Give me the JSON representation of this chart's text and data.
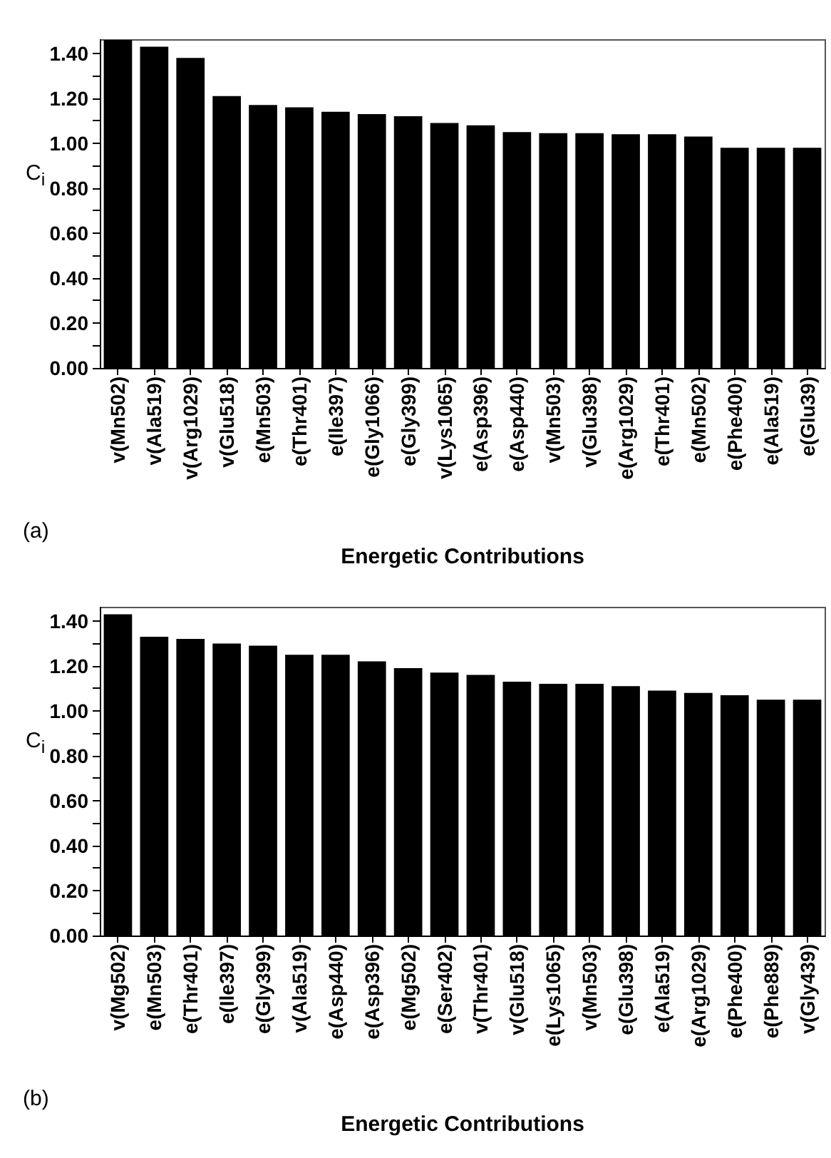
{
  "chart_data": [
    {
      "type": "bar",
      "xlabel": "Energetic Contributions",
      "ylabel": "C$_{i}$",
      "annotations": [
        "(a)"
      ],
      "categories": [
        "v(Mn502)",
        "v(Ala519)",
        "v(Arg1029)",
        "v(Glu518)",
        "e(Mn503)",
        "e(Thr401)",
        "e(Ile397)",
        "e(Gly1066)",
        "e(Gly399)",
        "v(Lys1065)",
        "e(Asp396)",
        "e(Asp440)",
        "v(Mn503)",
        "v(Glu398)",
        "e(Arg1029)",
        "e(Thr401)",
        "e(Mn502)",
        "e(Phe400)",
        "e(Ala519)",
        "e(Glu39)"
      ],
      "values": [
        1.46,
        1.43,
        1.38,
        1.21,
        1.17,
        1.16,
        1.14,
        1.13,
        1.12,
        1.09,
        1.08,
        1.05,
        1.045,
        1.045,
        1.04,
        1.04,
        1.03,
        0.98,
        0.98,
        0.98
      ],
      "color": "#000000",
      "ylim": [
        0,
        1.46
      ],
      "yticks": [
        {
          "value": 0,
          "label": "0.00"
        },
        {
          "value": 0.1,
          "label": null
        },
        {
          "value": 0.2,
          "label": "0.20"
        },
        {
          "value": 0.3,
          "label": null
        },
        {
          "value": 0.4,
          "label": "0.40"
        },
        {
          "value": 0.5,
          "label": null
        },
        {
          "value": 0.6,
          "label": "0.60"
        },
        {
          "value": 0.7,
          "label": null
        },
        {
          "value": 0.8,
          "label": "0.80"
        },
        {
          "value": 0.9,
          "label": null
        },
        {
          "value": 1,
          "label": "1.00"
        },
        {
          "value": 1.1,
          "label": null
        },
        {
          "value": 1.2,
          "label": "1.20"
        },
        {
          "value": 1.3,
          "label": null
        },
        {
          "value": 1.4,
          "label": "1.40"
        }
      ],
      "grid": false
    },
    {
      "type": "bar",
      "xlabel": "Energetic Contributions",
      "ylabel": "C$_{i}$",
      "annotations": [
        "(b)"
      ],
      "categories": [
        "v(Mg502)",
        "e(Mn503)",
        "e(Thr401)",
        "e(Ile397)",
        "e(Gly399)",
        "v(Ala519)",
        "e(Asp440)",
        "e(Asp396)",
        "e(Mg502)",
        "e(Ser402)",
        "v(Thr401)",
        "v(Glu518)",
        "e(Lys1065)",
        "v(Mn503)",
        "e(Glu398)",
        "e(Ala519)",
        "e(Arg1029)",
        "e(Phe400)",
        "e(Phe889)",
        "v(Gly439)"
      ],
      "values": [
        1.43,
        1.33,
        1.32,
        1.3,
        1.29,
        1.25,
        1.25,
        1.22,
        1.19,
        1.17,
        1.16,
        1.13,
        1.12,
        1.12,
        1.11,
        1.09,
        1.08,
        1.07,
        1.05,
        1.05
      ],
      "color": "#000000",
      "ylim": [
        0,
        1.46
      ],
      "yticks": [
        {
          "value": 0,
          "label": "0.00"
        },
        {
          "value": 0.1,
          "label": null
        },
        {
          "value": 0.2,
          "label": "0.20"
        },
        {
          "value": 0.3,
          "label": null
        },
        {
          "value": 0.4,
          "label": "0.40"
        },
        {
          "value": 0.5,
          "label": null
        },
        {
          "value": 0.6,
          "label": "0.60"
        },
        {
          "value": 0.7,
          "label": null
        },
        {
          "value": 0.8,
          "label": "0.80"
        },
        {
          "value": 0.9,
          "label": null
        },
        {
          "value": 1,
          "label": "1.00"
        },
        {
          "value": 1.1,
          "label": null
        },
        {
          "value": 1.2,
          "label": "1.20"
        },
        {
          "value": 1.3,
          "label": null
        },
        {
          "value": 1.4,
          "label": "1.40"
        }
      ],
      "grid": false
    }
  ]
}
